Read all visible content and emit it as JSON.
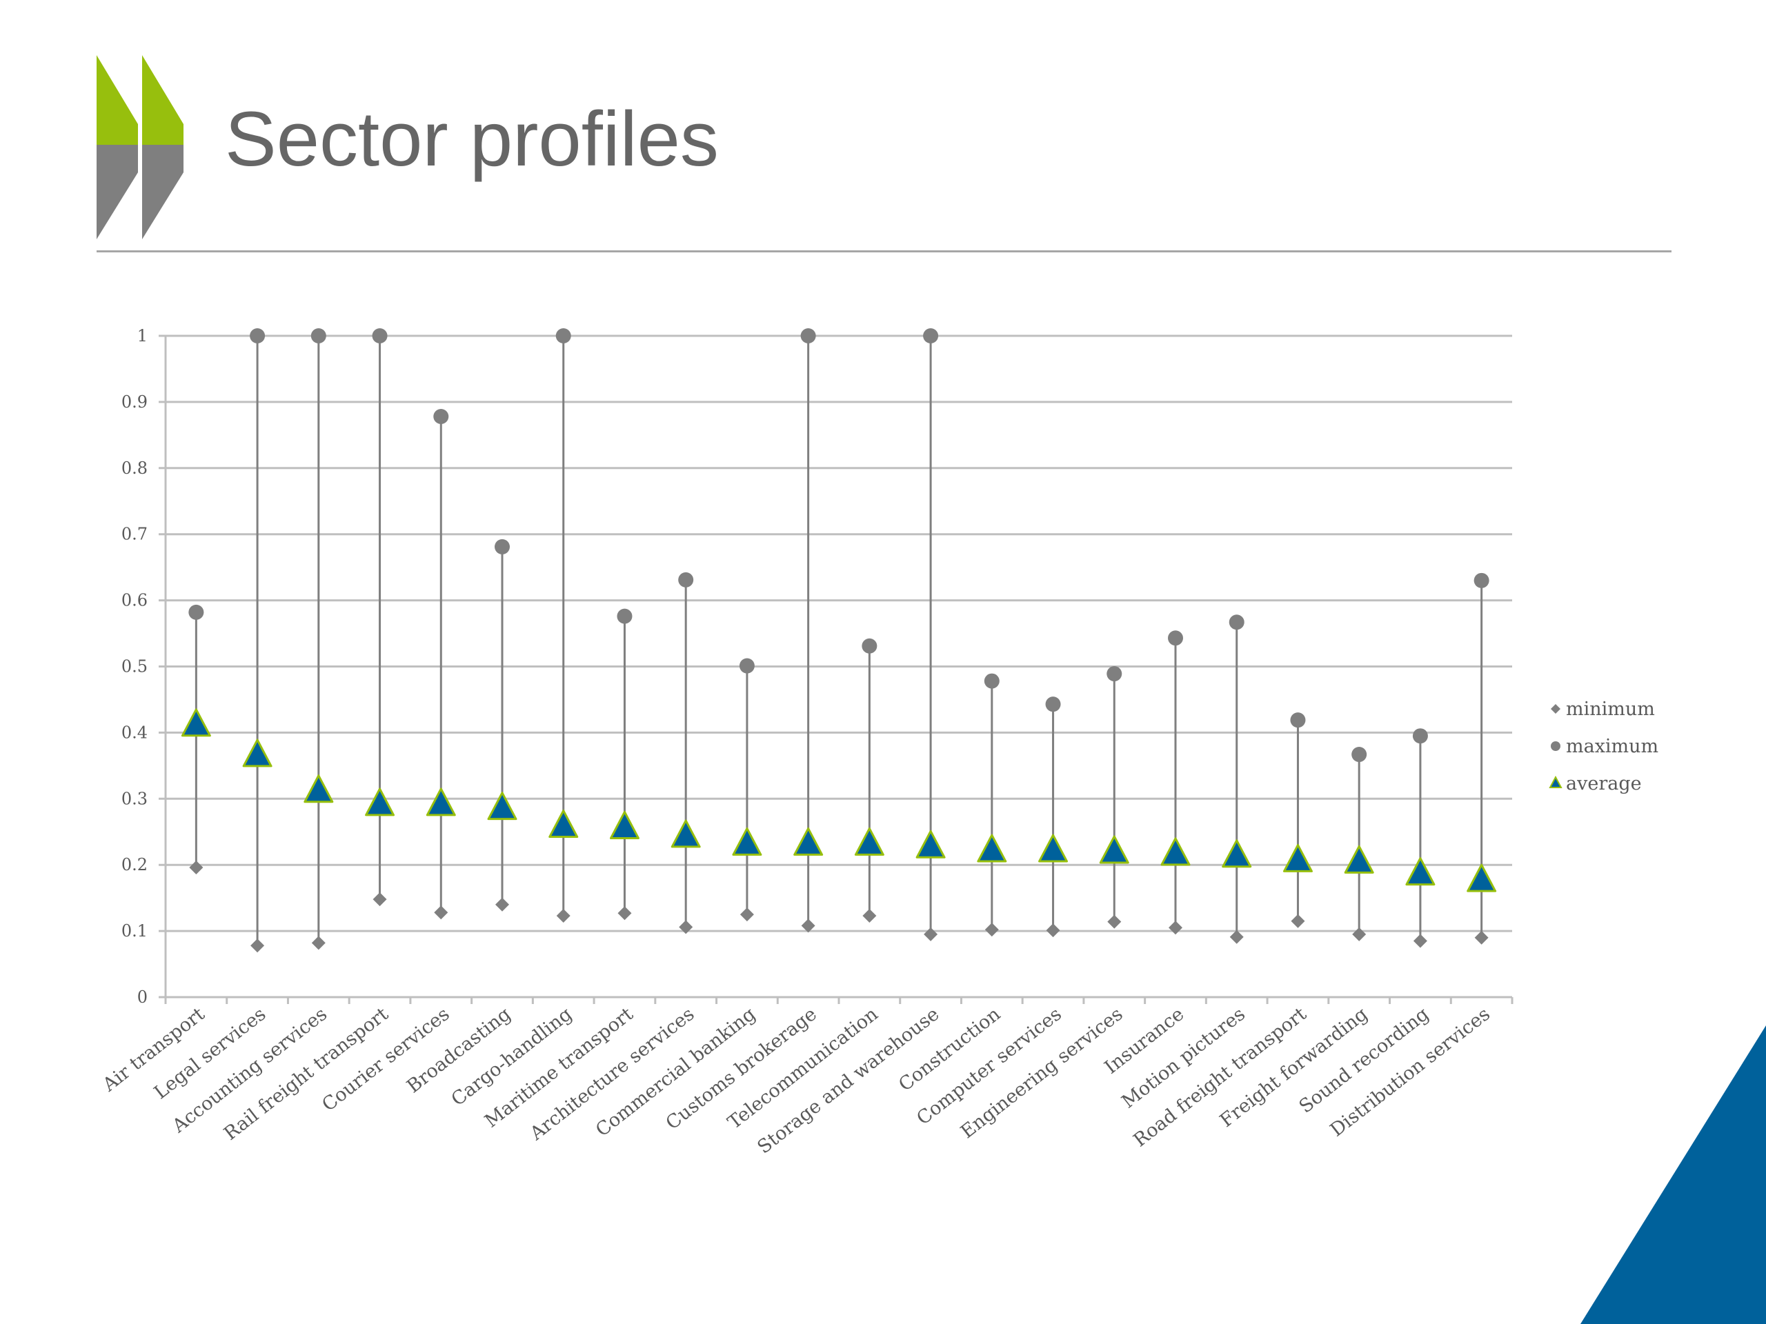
{
  "slide": {
    "title": "Sector profiles",
    "colors": {
      "logo_green": "#97bf0d",
      "logo_grey": "#7f7f7f",
      "title_text": "#666666",
      "accent_blue": "#00619b"
    },
    "icons": [
      "oecd-chevron-logo-icon",
      "corner-triangle-decoration"
    ]
  },
  "chart_data": {
    "type": "scatter",
    "categories": [
      "Air transport",
      "Legal services",
      "Accounting services",
      "Rail freight transport",
      "Courier services",
      "Broadcasting",
      "Cargo-handling",
      "Maritime transport",
      "Architecture services",
      "Commercial banking",
      "Customs brokerage",
      "Telecommunication",
      "Storage and warehouse",
      "Construction",
      "Computer services",
      "Engineering services",
      "Insurance",
      "Motion pictures",
      "Road freight transport",
      "Freight forwarding",
      "Sound recording",
      "Distribution services"
    ],
    "series": [
      {
        "name": "minimum",
        "marker": "diamond",
        "color": "#7f7f7f",
        "values": [
          0.196,
          0.078,
          0.082,
          0.148,
          0.128,
          0.14,
          0.123,
          0.127,
          0.106,
          0.125,
          0.108,
          0.123,
          0.095,
          0.102,
          0.101,
          0.114,
          0.105,
          0.091,
          0.115,
          0.095,
          0.085,
          0.09
        ]
      },
      {
        "name": "maximum",
        "marker": "circle",
        "color": "#7f7f7f",
        "values": [
          0.582,
          1.0,
          1.0,
          1.0,
          0.878,
          0.681,
          1.0,
          0.576,
          0.631,
          0.501,
          1.0,
          0.531,
          1.0,
          0.478,
          0.443,
          0.489,
          0.543,
          0.567,
          0.419,
          0.367,
          0.395,
          0.63
        ]
      },
      {
        "name": "average",
        "marker": "triangle",
        "color": "#00619b",
        "edge_color": "#97bf0d",
        "values": [
          0.41,
          0.364,
          0.31,
          0.29,
          0.29,
          0.284,
          0.257,
          0.255,
          0.242,
          0.23,
          0.23,
          0.23,
          0.226,
          0.22,
          0.22,
          0.218,
          0.215,
          0.212,
          0.205,
          0.203,
          0.185,
          0.175
        ]
      }
    ],
    "ylim": [
      0,
      1
    ],
    "yticks": [
      "0",
      "0.1",
      "0.2",
      "0.3",
      "0.4",
      "0.5",
      "0.6",
      "0.7",
      "0.8",
      "0.9",
      "1"
    ],
    "grid": true,
    "range_line": "minimum-to-maximum",
    "legend": {
      "position": "right",
      "entries": [
        "minimum",
        "maximum",
        "average"
      ]
    },
    "title": "",
    "xlabel": "",
    "ylabel": ""
  }
}
